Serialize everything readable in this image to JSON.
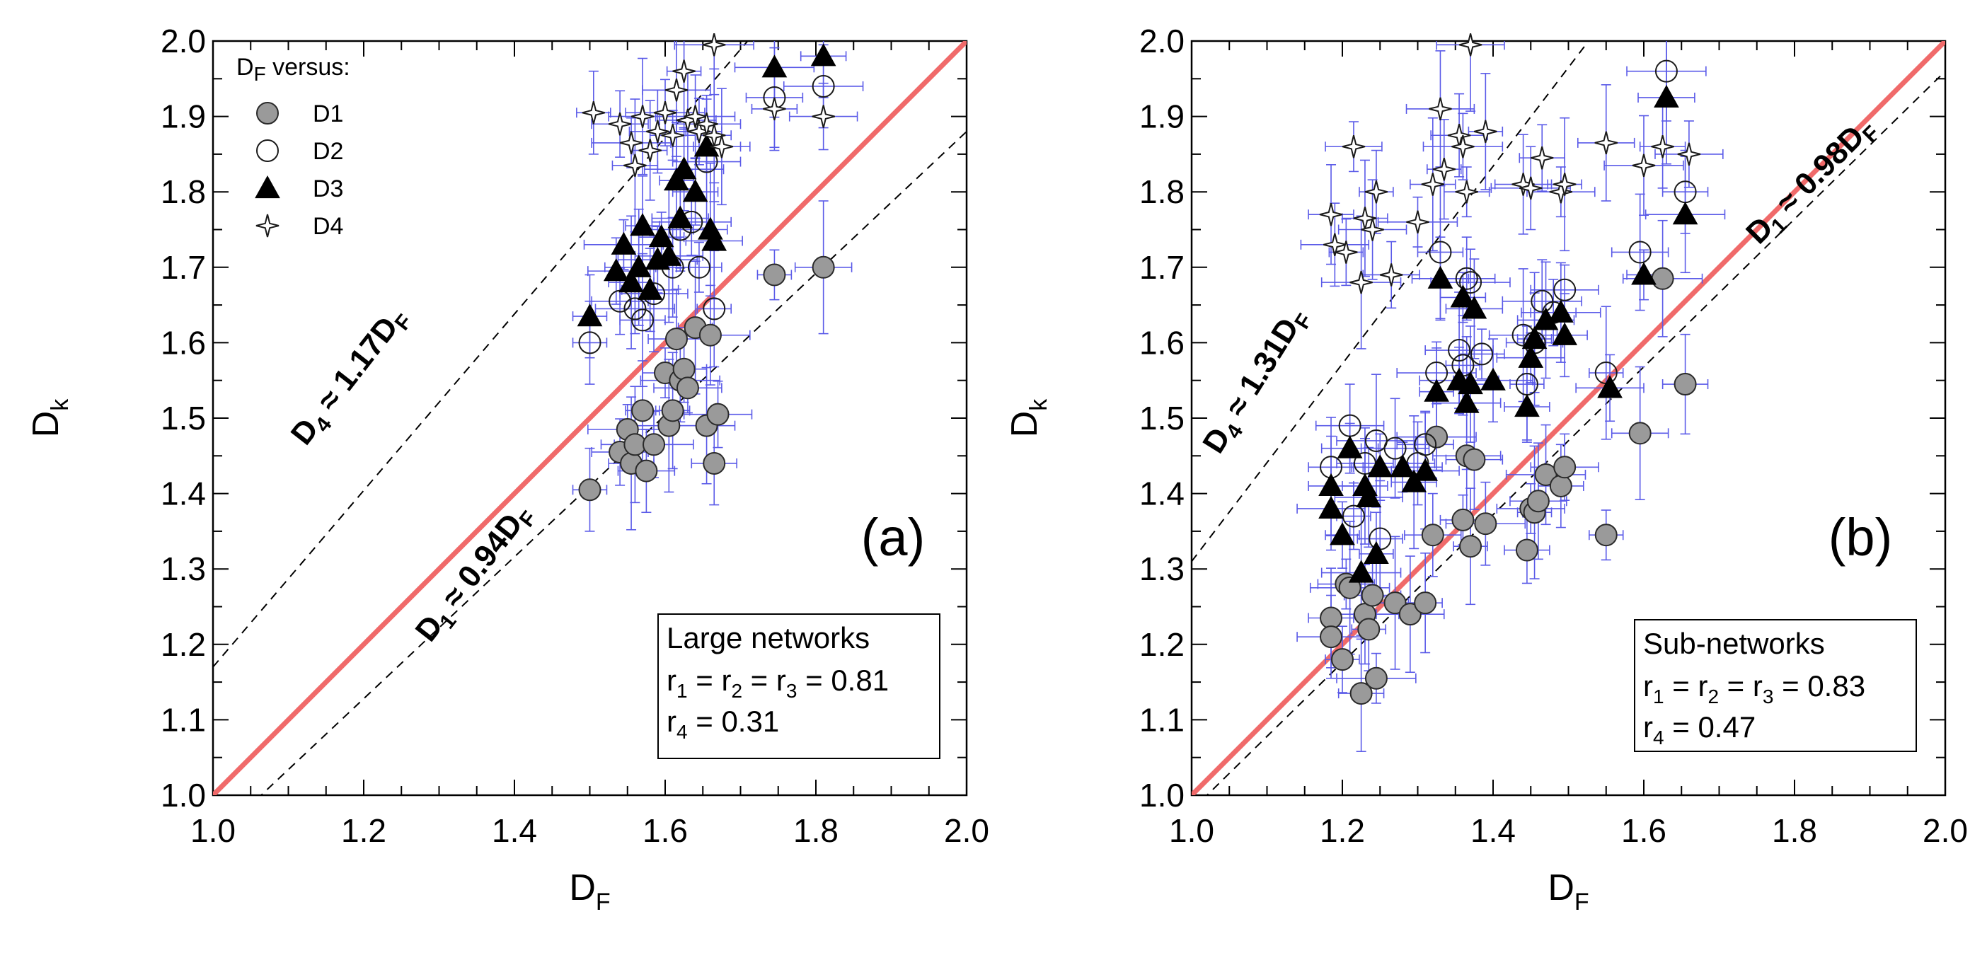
{
  "chart_data": [
    {
      "type": "scatter",
      "panel_label": "(a)",
      "xlabel": {
        "main": "D",
        "sub": "F"
      },
      "ylabel": {
        "main": "D",
        "sub": "k"
      },
      "xlim": [
        1.0,
        2.0
      ],
      "ylim": [
        1.0,
        2.0
      ],
      "xticks": [
        "1.0",
        "1.2",
        "1.4",
        "1.6",
        "1.8",
        "2.0"
      ],
      "yticks": [
        "1.0",
        "1.1",
        "1.2",
        "1.3",
        "1.4",
        "1.5",
        "1.6",
        "1.7",
        "1.8",
        "1.9",
        "2.0"
      ],
      "legend": {
        "title_main": "D",
        "title_sub": "F",
        "title_rest": " versus:",
        "entries": [
          {
            "label": "D1",
            "marker": "filled-circle"
          },
          {
            "label": "D2",
            "marker": "open-circle"
          },
          {
            "label": "D3",
            "marker": "filled-triangle"
          },
          {
            "label": "D4",
            "marker": "open-star"
          }
        ]
      },
      "reference_line": {
        "slope": 1.0,
        "color": "#f06a6a"
      },
      "fit_lines": [
        {
          "slope": 1.17,
          "label_main": "D",
          "label_sub": "4",
          "label_rest": " ≈ 1.17D",
          "label_sub2": "F"
        },
        {
          "slope": 0.94,
          "label_main": "D",
          "label_sub": "1",
          "label_rest": " ≈ 0.94D",
          "label_sub2": "F"
        }
      ],
      "stats_box": {
        "title": "Large networks",
        "line1": [
          {
            "t": "r"
          },
          {
            "s": "1"
          },
          {
            "t": " = r"
          },
          {
            "s": "2"
          },
          {
            "t": " = r"
          },
          {
            "s": "3"
          },
          {
            "t": " = 0.81"
          }
        ],
        "line2": [
          {
            "t": "r"
          },
          {
            "s": "4"
          },
          {
            "t": " = 0.31"
          }
        ]
      },
      "series": [
        {
          "name": "D1",
          "marker": "filled-circle",
          "points": [
            [
              1.5,
              1.405
            ],
            [
              1.54,
              1.455
            ],
            [
              1.55,
              1.485
            ],
            [
              1.555,
              1.44
            ],
            [
              1.56,
              1.465
            ],
            [
              1.57,
              1.51
            ],
            [
              1.575,
              1.43
            ],
            [
              1.585,
              1.465
            ],
            [
              1.6,
              1.56
            ],
            [
              1.605,
              1.49
            ],
            [
              1.61,
              1.51
            ],
            [
              1.615,
              1.605
            ],
            [
              1.62,
              1.55
            ],
            [
              1.625,
              1.565
            ],
            [
              1.63,
              1.54
            ],
            [
              1.64,
              1.62
            ],
            [
              1.655,
              1.49
            ],
            [
              1.66,
              1.61
            ],
            [
              1.665,
              1.44
            ],
            [
              1.67,
              1.505
            ],
            [
              1.745,
              1.69
            ],
            [
              1.81,
              1.7
            ]
          ]
        },
        {
          "name": "D2",
          "marker": "open-circle",
          "points": [
            [
              1.5,
              1.6
            ],
            [
              1.54,
              1.655
            ],
            [
              1.56,
              1.645
            ],
            [
              1.57,
              1.63
            ],
            [
              1.585,
              1.665
            ],
            [
              1.61,
              1.7
            ],
            [
              1.62,
              1.75
            ],
            [
              1.635,
              1.76
            ],
            [
              1.645,
              1.7
            ],
            [
              1.655,
              1.84
            ],
            [
              1.665,
              1.645
            ],
            [
              1.745,
              1.925
            ],
            [
              1.81,
              1.94
            ]
          ]
        },
        {
          "name": "D3",
          "marker": "filled-triangle",
          "points": [
            [
              1.5,
              1.635
            ],
            [
              1.535,
              1.695
            ],
            [
              1.545,
              1.73
            ],
            [
              1.555,
              1.68
            ],
            [
              1.565,
              1.7
            ],
            [
              1.57,
              1.755
            ],
            [
              1.58,
              1.67
            ],
            [
              1.59,
              1.71
            ],
            [
              1.595,
              1.74
            ],
            [
              1.605,
              1.715
            ],
            [
              1.615,
              1.815
            ],
            [
              1.62,
              1.765
            ],
            [
              1.625,
              1.83
            ],
            [
              1.64,
              1.8
            ],
            [
              1.655,
              1.86
            ],
            [
              1.66,
              1.75
            ],
            [
              1.665,
              1.735
            ],
            [
              1.745,
              1.965
            ],
            [
              1.81,
              1.98
            ]
          ]
        },
        {
          "name": "D4",
          "marker": "open-star",
          "points": [
            [
              1.505,
              1.905
            ],
            [
              1.54,
              1.89
            ],
            [
              1.555,
              1.865
            ],
            [
              1.56,
              1.835
            ],
            [
              1.57,
              1.9
            ],
            [
              1.58,
              1.855
            ],
            [
              1.59,
              1.88
            ],
            [
              1.6,
              1.905
            ],
            [
              1.61,
              1.875
            ],
            [
              1.615,
              1.935
            ],
            [
              1.625,
              1.96
            ],
            [
              1.63,
              1.895
            ],
            [
              1.64,
              1.9
            ],
            [
              1.645,
              1.88
            ],
            [
              1.655,
              1.89
            ],
            [
              1.665,
              1.875
            ],
            [
              1.675,
              1.86
            ],
            [
              1.665,
              1.995
            ],
            [
              1.745,
              1.91
            ],
            [
              1.81,
              1.9
            ]
          ]
        }
      ]
    },
    {
      "type": "scatter",
      "panel_label": "(b)",
      "xlabel": {
        "main": "D",
        "sub": "F"
      },
      "ylabel": {
        "main": "D",
        "sub": "k"
      },
      "xlim": [
        1.0,
        2.0
      ],
      "ylim": [
        1.0,
        2.0
      ],
      "xticks": [
        "1.0",
        "1.2",
        "1.4",
        "1.6",
        "1.8",
        "2.0"
      ],
      "yticks": [
        "1.0",
        "1.1",
        "1.2",
        "1.3",
        "1.4",
        "1.5",
        "1.6",
        "1.7",
        "1.8",
        "1.9",
        "2.0"
      ],
      "reference_line": {
        "slope": 1.0,
        "color": "#f06a6a"
      },
      "fit_lines": [
        {
          "slope": 1.31,
          "label_main": "D",
          "label_sub": "4",
          "label_rest": " ≈ 1.31D",
          "label_sub2": "F"
        },
        {
          "slope": 0.98,
          "label_main": "D",
          "label_sub": "1",
          "label_rest": " ≈ 0.98D",
          "label_sub2": "F"
        }
      ],
      "stats_box": {
        "title": "Sub-networks",
        "line1": [
          {
            "t": "r"
          },
          {
            "s": "1"
          },
          {
            "t": " = r"
          },
          {
            "s": "2"
          },
          {
            "t": " = r"
          },
          {
            "s": "3"
          },
          {
            "t": " = 0.83"
          }
        ],
        "line2": [
          {
            "t": "r"
          },
          {
            "s": "4"
          },
          {
            "t": " = 0.47"
          }
        ]
      },
      "series": [
        {
          "name": "D1",
          "marker": "filled-circle",
          "points": [
            [
              1.185,
              1.235
            ],
            [
              1.185,
              1.21
            ],
            [
              1.2,
              1.18
            ],
            [
              1.205,
              1.28
            ],
            [
              1.21,
              1.275
            ],
            [
              1.225,
              1.135
            ],
            [
              1.23,
              1.24
            ],
            [
              1.235,
              1.22
            ],
            [
              1.24,
              1.265
            ],
            [
              1.245,
              1.155
            ],
            [
              1.27,
              1.255
            ],
            [
              1.29,
              1.24
            ],
            [
              1.31,
              1.255
            ],
            [
              1.32,
              1.345
            ],
            [
              1.325,
              1.475
            ],
            [
              1.36,
              1.365
            ],
            [
              1.365,
              1.45
            ],
            [
              1.37,
              1.33
            ],
            [
              1.375,
              1.445
            ],
            [
              1.39,
              1.36
            ],
            [
              1.445,
              1.325
            ],
            [
              1.45,
              1.38
            ],
            [
              1.455,
              1.375
            ],
            [
              1.46,
              1.39
            ],
            [
              1.47,
              1.425
            ],
            [
              1.49,
              1.41
            ],
            [
              1.495,
              1.435
            ],
            [
              1.55,
              1.345
            ],
            [
              1.595,
              1.48
            ],
            [
              1.625,
              1.685
            ],
            [
              1.655,
              1.545
            ]
          ]
        },
        {
          "name": "D2",
          "marker": "open-circle",
          "points": [
            [
              1.185,
              1.435
            ],
            [
              1.21,
              1.49
            ],
            [
              1.215,
              1.37
            ],
            [
              1.23,
              1.44
            ],
            [
              1.245,
              1.47
            ],
            [
              1.25,
              1.34
            ],
            [
              1.27,
              1.46
            ],
            [
              1.3,
              1.44
            ],
            [
              1.31,
              1.465
            ],
            [
              1.325,
              1.56
            ],
            [
              1.33,
              1.72
            ],
            [
              1.355,
              1.59
            ],
            [
              1.36,
              1.57
            ],
            [
              1.365,
              1.685
            ],
            [
              1.37,
              1.68
            ],
            [
              1.385,
              1.585
            ],
            [
              1.44,
              1.61
            ],
            [
              1.445,
              1.545
            ],
            [
              1.455,
              1.6
            ],
            [
              1.465,
              1.655
            ],
            [
              1.48,
              1.64
            ],
            [
              1.495,
              1.67
            ],
            [
              1.55,
              1.56
            ],
            [
              1.595,
              1.72
            ],
            [
              1.63,
              1.96
            ],
            [
              1.655,
              1.8
            ]
          ]
        },
        {
          "name": "D3",
          "marker": "filled-triangle",
          "points": [
            [
              1.185,
              1.41
            ],
            [
              1.185,
              1.38
            ],
            [
              1.2,
              1.345
            ],
            [
              1.21,
              1.46
            ],
            [
              1.225,
              1.295
            ],
            [
              1.23,
              1.41
            ],
            [
              1.235,
              1.395
            ],
            [
              1.245,
              1.32
            ],
            [
              1.25,
              1.435
            ],
            [
              1.28,
              1.435
            ],
            [
              1.295,
              1.415
            ],
            [
              1.31,
              1.43
            ],
            [
              1.325,
              1.535
            ],
            [
              1.33,
              1.685
            ],
            [
              1.355,
              1.55
            ],
            [
              1.36,
              1.66
            ],
            [
              1.365,
              1.52
            ],
            [
              1.37,
              1.545
            ],
            [
              1.375,
              1.645
            ],
            [
              1.4,
              1.55
            ],
            [
              1.445,
              1.515
            ],
            [
              1.45,
              1.58
            ],
            [
              1.455,
              1.605
            ],
            [
              1.47,
              1.63
            ],
            [
              1.49,
              1.64
            ],
            [
              1.495,
              1.61
            ],
            [
              1.555,
              1.54
            ],
            [
              1.6,
              1.69
            ],
            [
              1.63,
              1.925
            ],
            [
              1.655,
              1.77
            ]
          ]
        },
        {
          "name": "D4",
          "marker": "open-star",
          "points": [
            [
              1.185,
              1.77
            ],
            [
              1.19,
              1.73
            ],
            [
              1.205,
              1.72
            ],
            [
              1.215,
              1.86
            ],
            [
              1.225,
              1.68
            ],
            [
              1.23,
              1.765
            ],
            [
              1.24,
              1.75
            ],
            [
              1.245,
              1.8
            ],
            [
              1.265,
              1.69
            ],
            [
              1.3,
              1.76
            ],
            [
              1.32,
              1.81
            ],
            [
              1.33,
              1.91
            ],
            [
              1.335,
              1.83
            ],
            [
              1.355,
              1.875
            ],
            [
              1.36,
              1.86
            ],
            [
              1.365,
              1.8
            ],
            [
              1.37,
              1.995
            ],
            [
              1.39,
              1.88
            ],
            [
              1.44,
              1.81
            ],
            [
              1.45,
              1.805
            ],
            [
              1.465,
              1.845
            ],
            [
              1.49,
              1.8
            ],
            [
              1.495,
              1.81
            ],
            [
              1.55,
              1.865
            ],
            [
              1.6,
              1.835
            ],
            [
              1.625,
              1.86
            ],
            [
              1.66,
              1.85
            ]
          ]
        }
      ]
    }
  ]
}
